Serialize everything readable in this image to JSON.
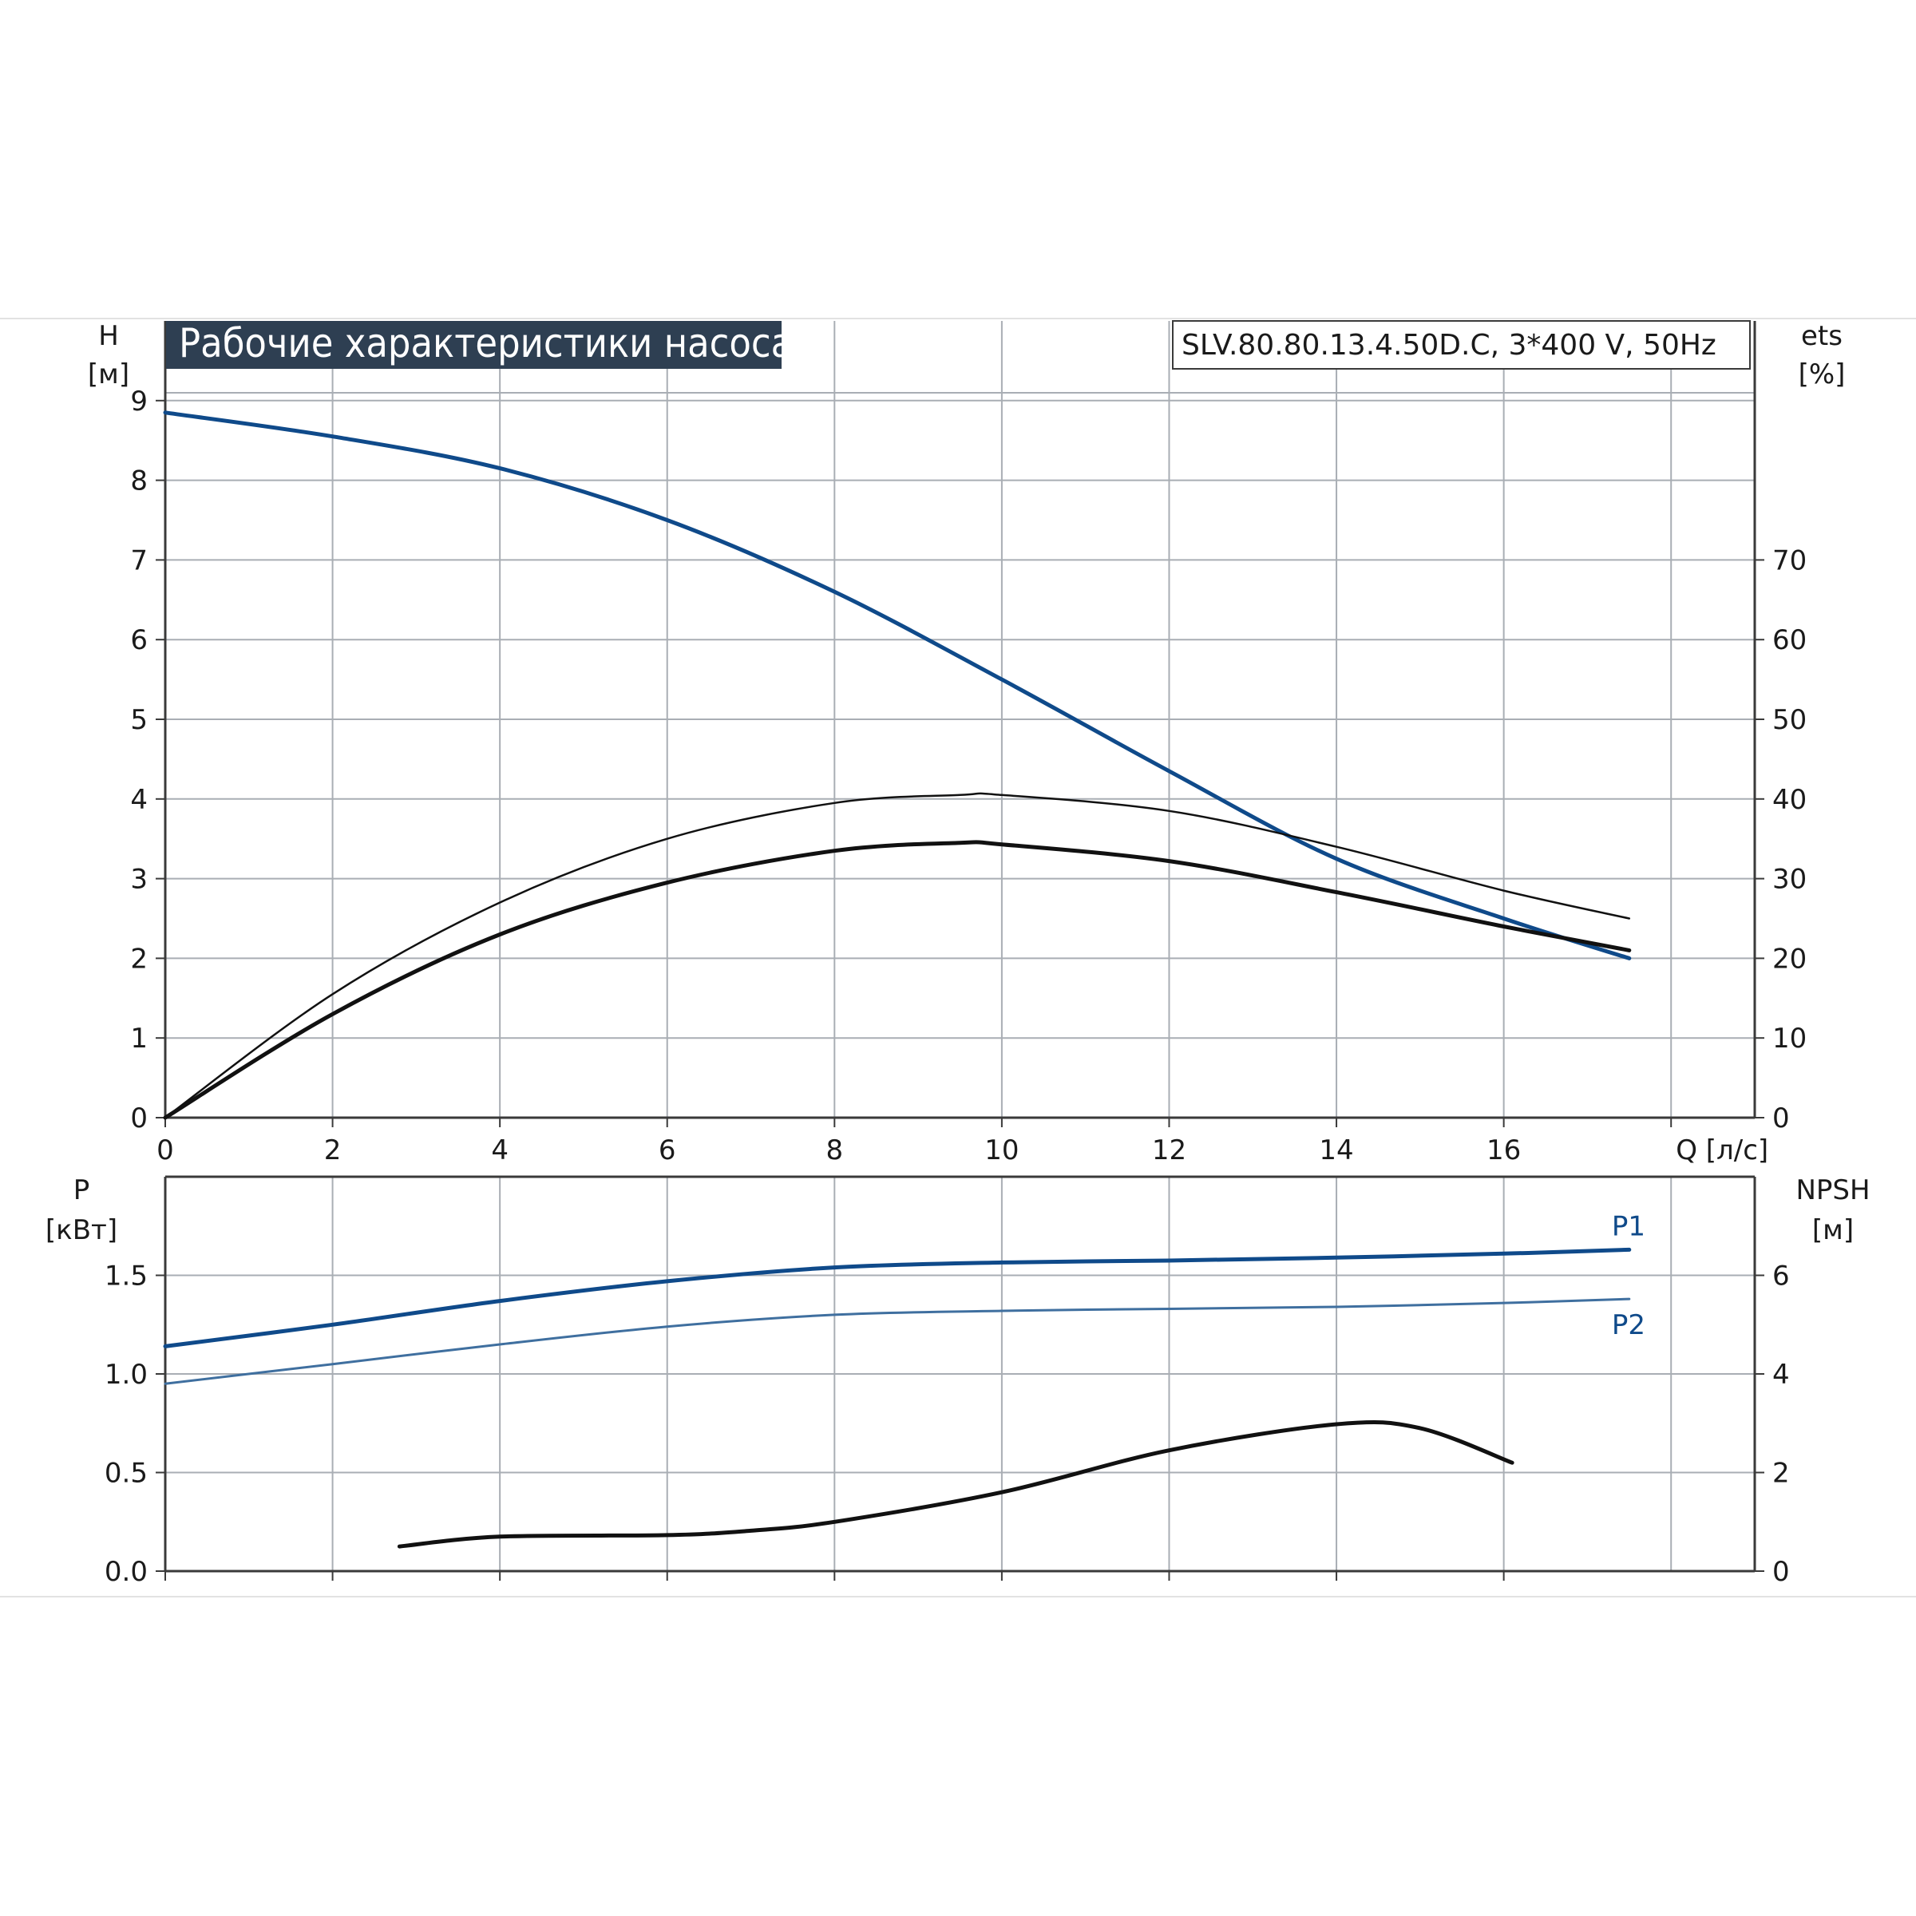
{
  "title": "Рабочие характеристики насоса",
  "model": "SLV.80.80.13.4.50D.C, 3*400 V, 50Hz",
  "colors": {
    "blue": "#0f4a8a",
    "blue_light": "#3f6f9f",
    "black": "#111111",
    "title_bg": "#2e3f52"
  },
  "chart_data": [
    {
      "type": "line",
      "name": "head-efficiency",
      "xlabel": "Q [л/с]",
      "xlim": [
        0,
        19
      ],
      "x_ticks": [
        0,
        2,
        4,
        6,
        8,
        10,
        12,
        14,
        16
      ],
      "ylabel_left": [
        "H",
        "[м]"
      ],
      "ylim_left": [
        0,
        10
      ],
      "y_ticks_left": [
        0,
        1,
        2,
        3,
        4,
        5,
        6,
        7,
        8,
        9
      ],
      "ylabel_right": [
        "ets",
        "[%]"
      ],
      "ylim_right": [
        0,
        100
      ],
      "y_ticks_right": [
        0,
        10,
        20,
        30,
        40,
        50,
        60,
        70
      ],
      "grid": true,
      "series": [
        {
          "axis": "left",
          "color": "#0f4a8a",
          "width": 5,
          "x": [
            0,
            2,
            4,
            6,
            8,
            10,
            12,
            14,
            16,
            17.5
          ],
          "y": [
            8.85,
            8.55,
            8.15,
            7.5,
            6.6,
            5.5,
            4.35,
            3.25,
            2.5,
            2.0
          ]
        },
        {
          "axis": "right",
          "color": "#111111",
          "width": 2.5,
          "x": [
            0,
            2,
            4,
            6,
            8,
            9.5,
            10,
            12,
            14,
            16,
            17.5
          ],
          "y": [
            0,
            15.5,
            27,
            35,
            39.5,
            40.5,
            40.5,
            38.5,
            34,
            28.5,
            25
          ]
        },
        {
          "axis": "right",
          "color": "#111111",
          "width": 5,
          "x": [
            0,
            2,
            4,
            6,
            8,
            9.5,
            10,
            12,
            14,
            16,
            17.5
          ],
          "y": [
            0,
            13,
            23,
            29.5,
            33.5,
            34.5,
            34.3,
            32.2,
            28.3,
            24,
            21
          ]
        }
      ]
    },
    {
      "type": "line",
      "name": "power-npsh",
      "xlim": [
        0,
        19
      ],
      "x_ticks": [
        0,
        2,
        4,
        6,
        8,
        10,
        12,
        14,
        16
      ],
      "ylabel_left": [
        "P",
        "[кВт]"
      ],
      "ylim_left": [
        0,
        2
      ],
      "y_ticks_left": [
        "0.0",
        "0.5",
        "1.0",
        "1.5"
      ],
      "ylabel_right": [
        "NPSH",
        "[м]"
      ],
      "ylim_right": [
        0,
        8
      ],
      "y_ticks_right": [
        0,
        2,
        4,
        6
      ],
      "grid": true,
      "series": [
        {
          "name": "P1",
          "axis": "left",
          "color": "#0f4a8a",
          "width": 5,
          "x": [
            0,
            2,
            4,
            6,
            8,
            10,
            12,
            14,
            16,
            17.5
          ],
          "y": [
            1.14,
            1.25,
            1.37,
            1.47,
            1.54,
            1.565,
            1.575,
            1.59,
            1.61,
            1.63
          ]
        },
        {
          "name": "P2",
          "axis": "left",
          "color": "#3f6f9f",
          "width": 3,
          "x": [
            0,
            2,
            4,
            6,
            8,
            10,
            12,
            14,
            16,
            17.5
          ],
          "y": [
            0.95,
            1.05,
            1.15,
            1.24,
            1.3,
            1.32,
            1.33,
            1.34,
            1.36,
            1.38
          ]
        },
        {
          "axis": "right",
          "color": "#111111",
          "width": 5,
          "x": [
            2.8,
            4,
            6,
            7,
            8,
            10,
            12,
            14,
            15,
            16.1
          ],
          "y": [
            0.5,
            0.7,
            0.73,
            0.82,
            1.0,
            1.6,
            2.45,
            2.98,
            2.9,
            2.2
          ]
        }
      ]
    }
  ]
}
